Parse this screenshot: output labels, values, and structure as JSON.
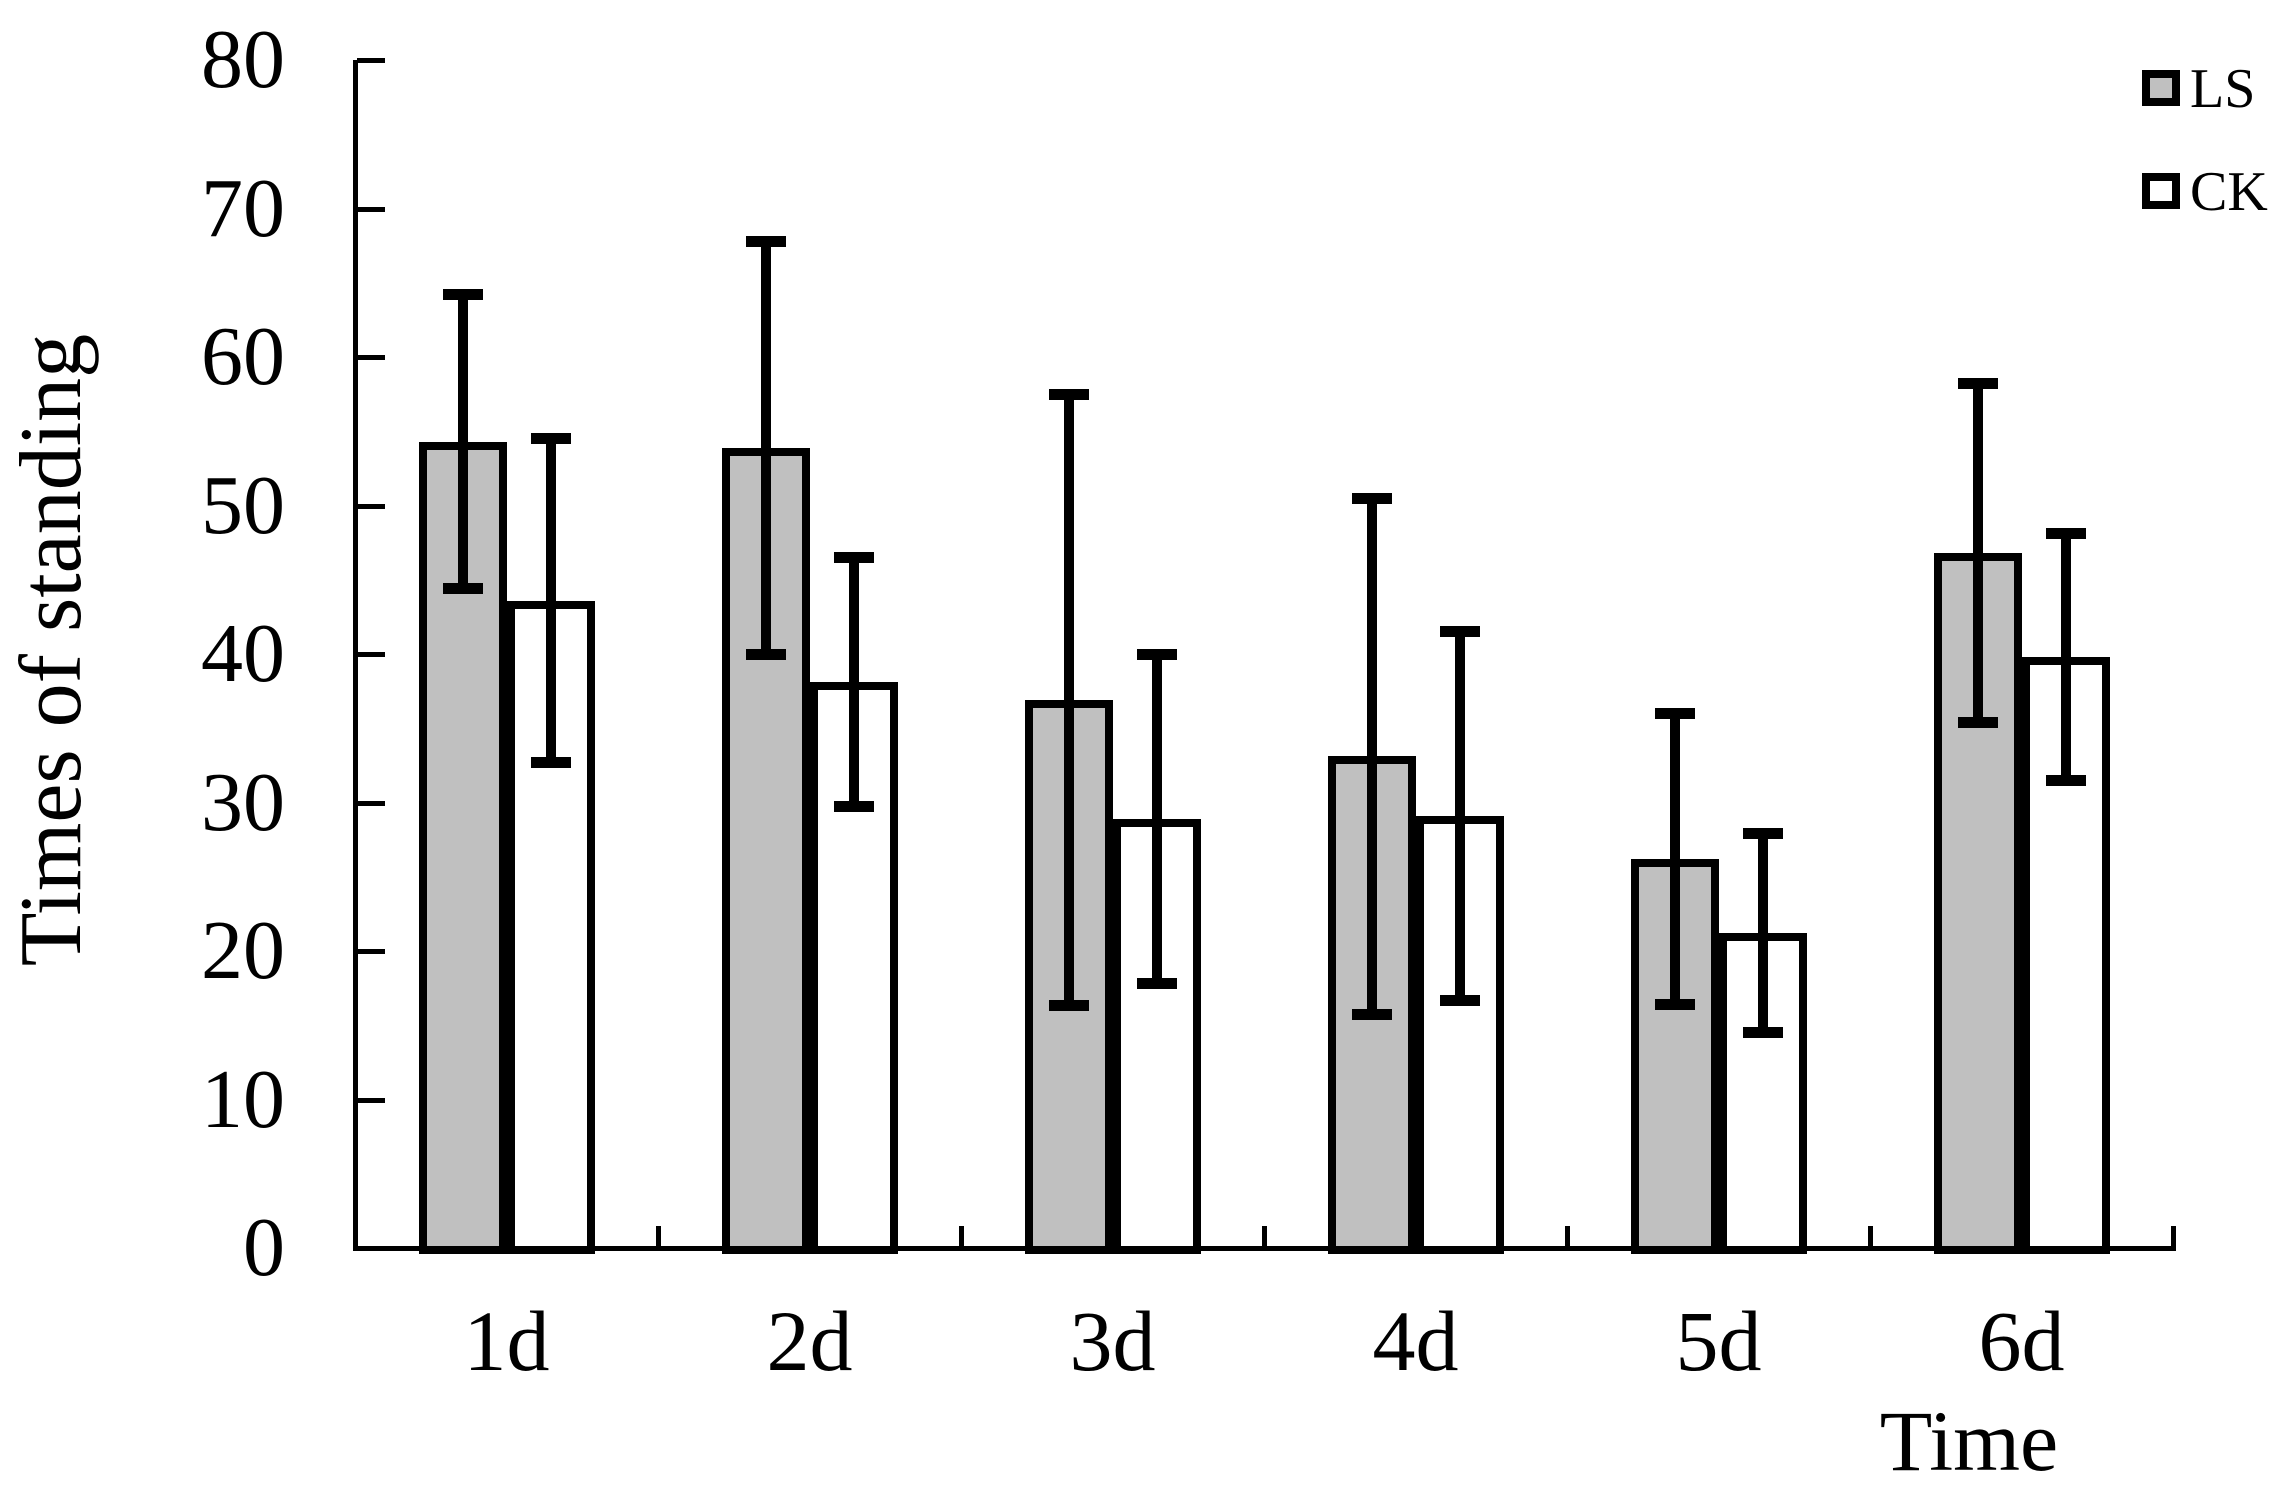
{
  "figure": {
    "background": "#ffffff",
    "text_color": "#000000"
  },
  "chart_data": {
    "type": "bar",
    "title": "",
    "xlabel": "Time",
    "ylabel": "Times of standing",
    "categories": [
      "1d",
      "2d",
      "3d",
      "4d",
      "5d",
      "6d"
    ],
    "series": [
      {
        "name": "LS",
        "fill": "#c0c0c0",
        "values": [
          54.3,
          53.9,
          36.9,
          33.1,
          26.2,
          46.8
        ],
        "errors": [
          9.9,
          13.9,
          20.6,
          17.4,
          9.8,
          11.4
        ]
      },
      {
        "name": "CK",
        "fill": "#ffffff",
        "values": [
          43.6,
          38.1,
          28.9,
          29.1,
          21.2,
          39.8
        ],
        "errors": [
          10.9,
          8.4,
          11.1,
          12.4,
          6.7,
          8.3
        ]
      }
    ],
    "ylim": [
      0,
      80
    ],
    "ytick_step": 10,
    "y_tick_labels": [
      "0",
      "10",
      "20",
      "30",
      "40",
      "50",
      "60",
      "70",
      "80"
    ],
    "error_bars": true,
    "grid": false,
    "legend_position": "top-right",
    "bar_outline": "#000000"
  }
}
